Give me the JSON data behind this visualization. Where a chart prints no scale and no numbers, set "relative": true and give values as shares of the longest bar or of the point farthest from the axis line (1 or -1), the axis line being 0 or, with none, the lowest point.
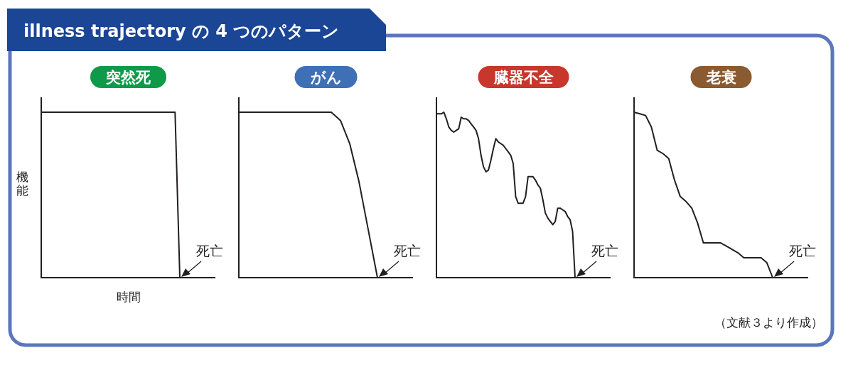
{
  "chart_data": [
    {
      "type": "line",
      "title": "illness trajectory の 4 つのパターン",
      "subtitle": "突然死",
      "xlabel": "時間",
      "ylabel": "機能",
      "relative": true,
      "categories": [
        null,
        null,
        null,
        null,
        null,
        null,
        null,
        null,
        null,
        null,
        null,
        null,
        null,
        null,
        null,
        null,
        null,
        null,
        null,
        null,
        null,
        null,
        null,
        null,
        null,
        null,
        null,
        null,
        null,
        null
      ],
      "series": [
        {
          "color": "#231f20",
          "values": [
            1,
            1,
            1,
            1,
            1,
            1,
            1,
            1,
            1,
            1,
            1,
            1,
            1,
            1,
            1,
            1,
            1,
            1,
            1,
            1,
            1,
            1,
            1,
            1,
            1,
            1,
            1,
            1,
            1,
            0
          ]
        }
      ],
      "annotations": [
        "死亡"
      ]
    },
    {
      "type": "line",
      "subtitle": "がん",
      "relative": true,
      "categories": [
        null,
        null,
        null,
        null,
        null,
        null,
        null,
        null,
        null,
        null,
        null,
        null,
        null,
        null,
        null,
        null
      ],
      "series": [
        {
          "color": "#231f20",
          "values": [
            1,
            1,
            1,
            1,
            1,
            1,
            1,
            1,
            1,
            1,
            1,
            0.95,
            0.81,
            0.58,
            0.29,
            0
          ]
        }
      ],
      "annotations": [
        "死亡"
      ]
    },
    {
      "type": "line",
      "subtitle": "臓器不全",
      "relative": true,
      "categories": [
        null,
        null,
        null,
        null,
        null,
        null,
        null,
        null,
        null,
        null,
        null,
        null,
        null,
        null,
        null,
        null,
        null,
        null,
        null,
        null,
        null,
        null,
        null,
        null,
        null,
        null,
        null,
        null,
        null,
        null,
        null,
        null,
        null,
        null,
        null,
        null,
        null,
        null,
        null,
        null,
        null,
        null,
        null,
        null,
        null,
        null,
        null,
        null,
        null,
        null,
        null,
        null,
        null,
        null,
        null,
        null,
        null
      ],
      "series": [
        {
          "color": "#231f20",
          "values": [
            0.99,
            0.99,
            0.99,
            1,
            0.96,
            0.91,
            0.89,
            0.88,
            0.89,
            0.9,
            0.97,
            0.96,
            0.96,
            0.95,
            0.93,
            0.91,
            0.89,
            0.84,
            0.74,
            0.67,
            0.64,
            0.65,
            0.71,
            0.78,
            0.84,
            0.82,
            0.81,
            0.8,
            0.78,
            0.76,
            0.74,
            0.69,
            0.49,
            0.45,
            0.45,
            0.45,
            0.49,
            0.61,
            0.61,
            0.61,
            0.59,
            0.56,
            0.54,
            0.47,
            0.39,
            0.36,
            0.34,
            0.32,
            0.34,
            0.42,
            0.42,
            0.41,
            0.4,
            0.37,
            0.35,
            0.28,
            0
          ]
        }
      ],
      "annotations": [
        "死亡"
      ]
    },
    {
      "type": "line",
      "subtitle": "老衰",
      "relative": true,
      "categories": [
        null,
        null,
        null,
        null,
        null,
        null,
        null,
        null,
        null,
        null,
        null,
        null,
        null,
        null,
        null,
        null,
        null,
        null,
        null,
        null,
        null,
        null,
        null,
        null,
        null
      ],
      "series": [
        {
          "color": "#231f20",
          "values": [
            1,
            0.99,
            0.98,
            0.91,
            0.77,
            0.75,
            0.72,
            0.59,
            0.49,
            0.46,
            0.42,
            0.33,
            0.21,
            0.21,
            0.21,
            0.21,
            0.19,
            0.17,
            0.15,
            0.12,
            0.12,
            0.12,
            0.12,
            0.09,
            0
          ]
        }
      ],
      "annotations": [
        "死亡",
        "（文献３より作成）"
      ]
    }
  ]
}
